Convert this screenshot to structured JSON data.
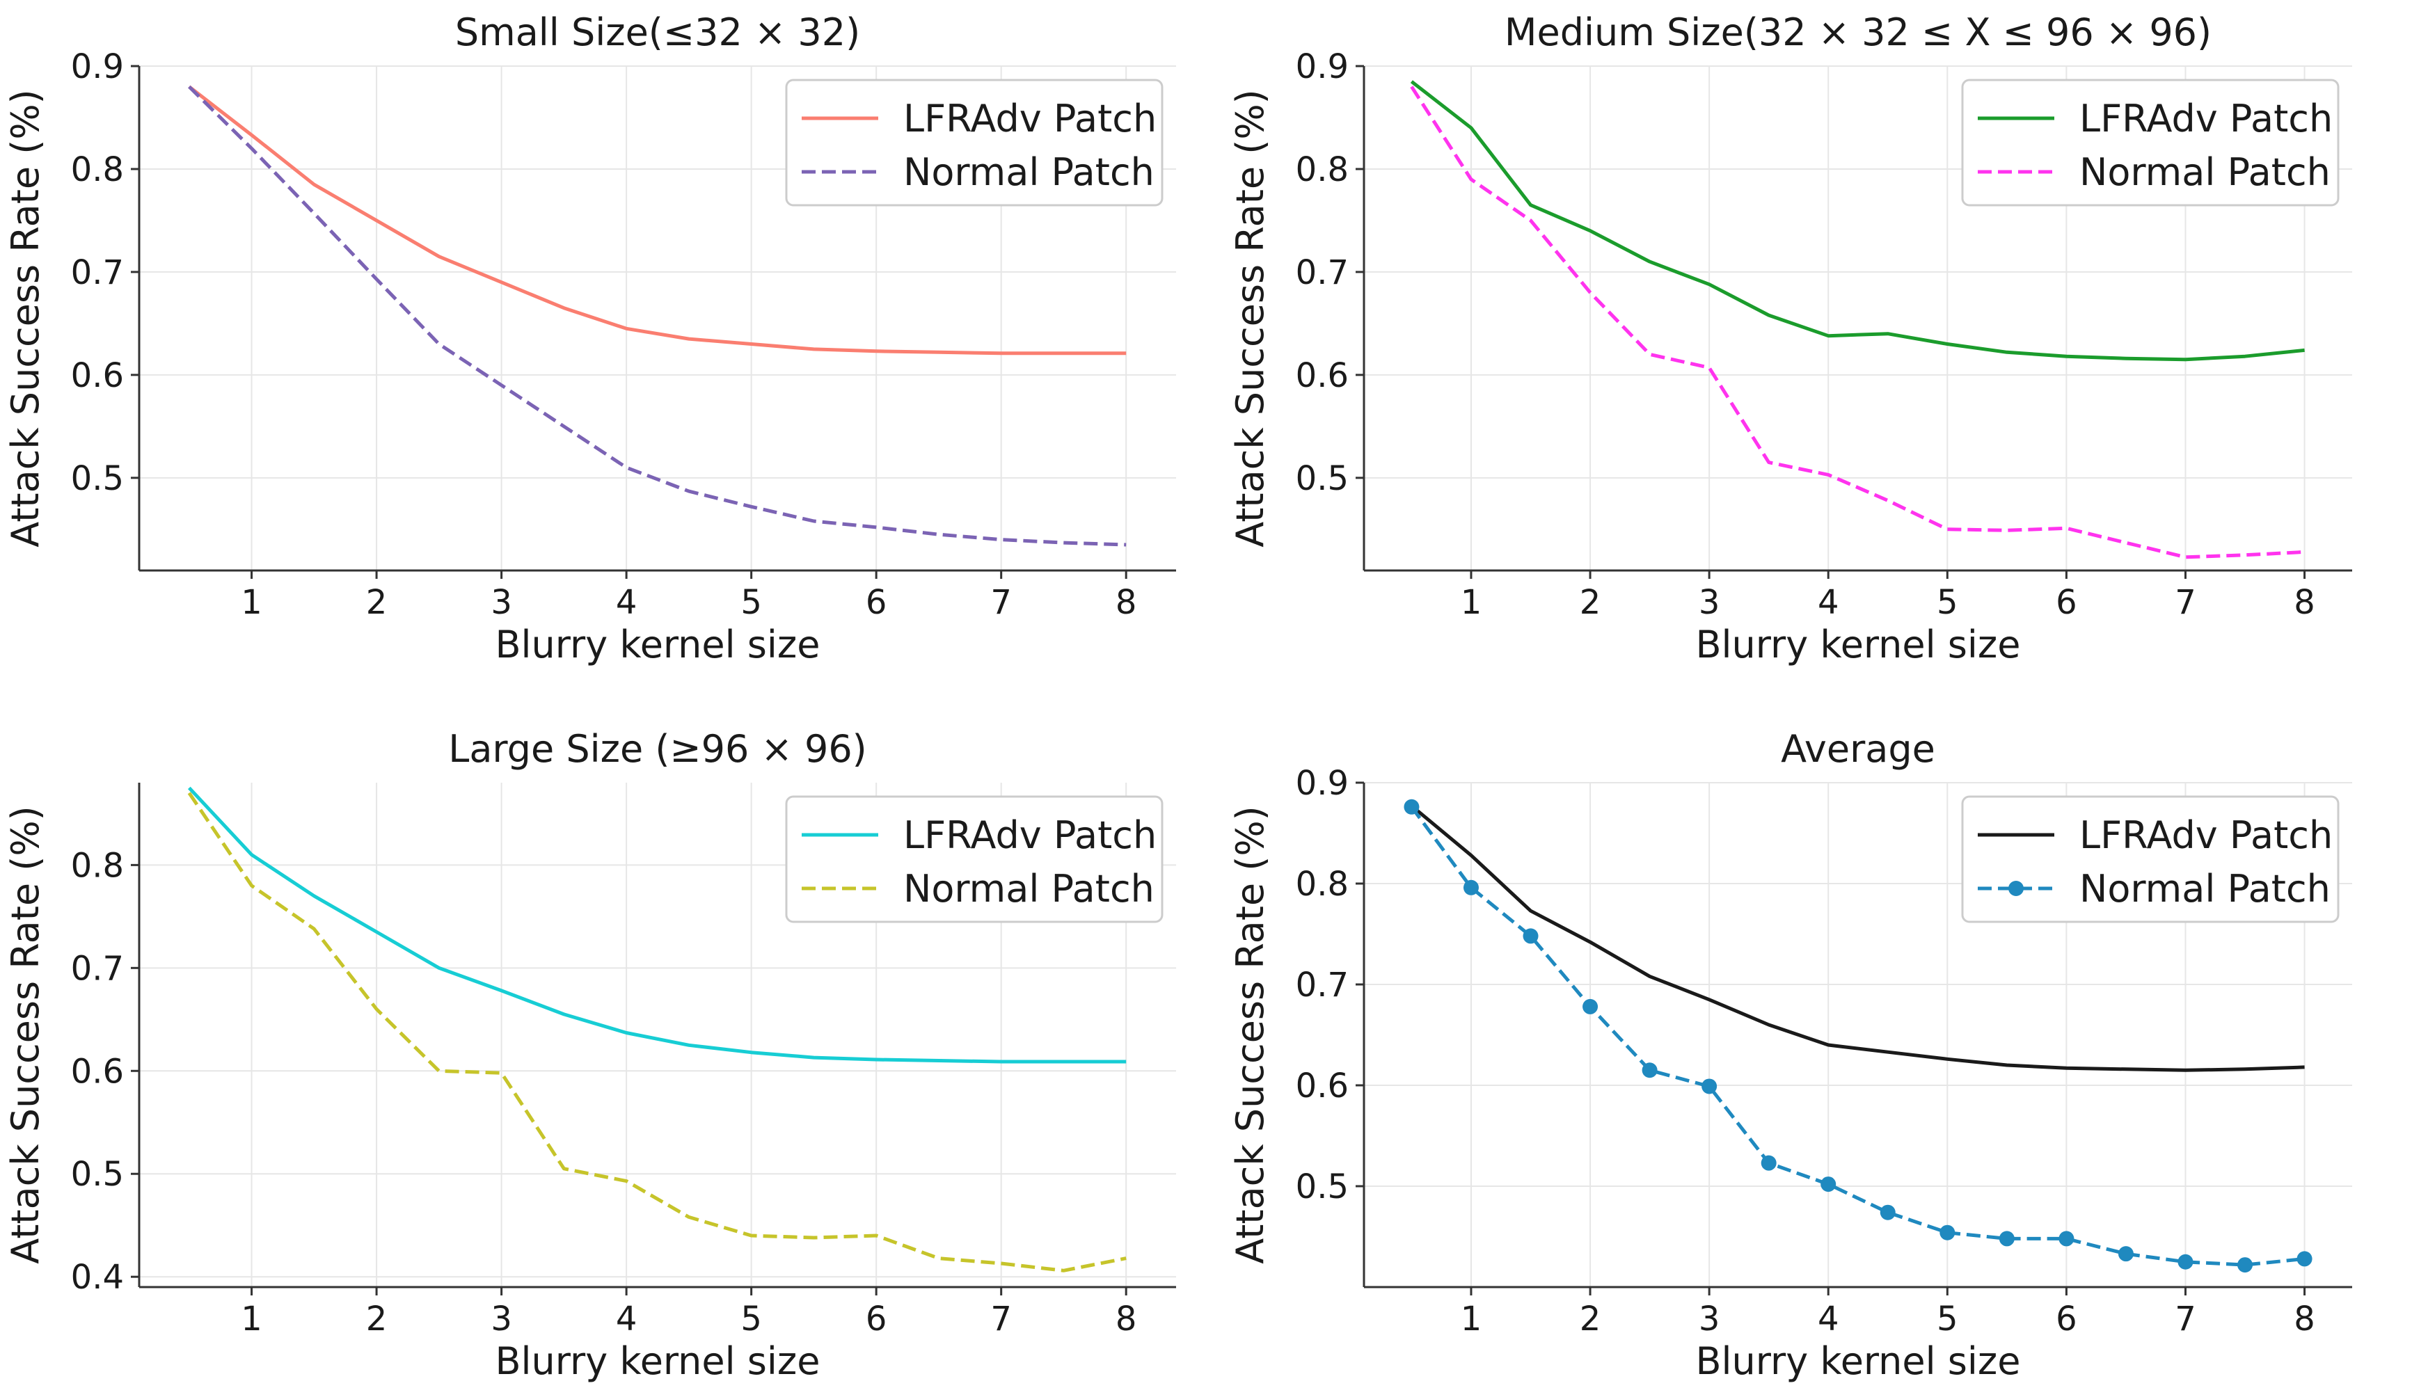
{
  "chart_data": [
    {
      "type": "line",
      "title": "Small Size(≤32 × 32)",
      "xlabel": "Blurry kernel size",
      "ylabel": "Attack Success Rate (%)",
      "xlim": [
        0.1,
        8.4
      ],
      "ylim": [
        0.41,
        0.9
      ],
      "xticks": [
        1,
        2,
        3,
        4,
        5,
        6,
        7,
        8
      ],
      "yticks": [
        0.5,
        0.6,
        0.7,
        0.8,
        0.9
      ],
      "grid": true,
      "legend": "upper right",
      "x": [
        0.5,
        1,
        1.5,
        2,
        2.5,
        3,
        3.5,
        4,
        4.5,
        5,
        5.5,
        6,
        6.5,
        7,
        7.5,
        8
      ],
      "series": [
        {
          "name": "LFRAdv Patch",
          "color": "#fa7e70",
          "dash": "solid",
          "marker": "none",
          "values": [
            0.88,
            0.833,
            0.785,
            0.75,
            0.715,
            0.69,
            0.665,
            0.645,
            0.635,
            0.63,
            0.625,
            0.623,
            0.622,
            0.621,
            0.621,
            0.621
          ]
        },
        {
          "name": "Normal Patch",
          "color": "#7b63b4",
          "dash": "dashed",
          "marker": "none",
          "values": [
            0.88,
            0.82,
            0.757,
            0.693,
            0.63,
            0.59,
            0.55,
            0.51,
            0.487,
            0.472,
            0.458,
            0.452,
            0.445,
            0.44,
            0.437,
            0.435
          ]
        }
      ]
    },
    {
      "type": "line",
      "title": "Medium Size(32 × 32 ≤ X ≤ 96 × 96)",
      "xlabel": "Blurry kernel size",
      "ylabel": "Attack Success Rate (%)",
      "xlim": [
        0.1,
        8.4
      ],
      "ylim": [
        0.41,
        0.9
      ],
      "xticks": [
        1,
        2,
        3,
        4,
        5,
        6,
        7,
        8
      ],
      "yticks": [
        0.5,
        0.6,
        0.7,
        0.8,
        0.9
      ],
      "grid": true,
      "legend": "upper right",
      "x": [
        0.5,
        1,
        1.5,
        2,
        2.5,
        3,
        3.5,
        4,
        4.5,
        5,
        5.5,
        6,
        6.5,
        7,
        7.5,
        8
      ],
      "series": [
        {
          "name": "LFRAdv Patch",
          "color": "#1b9c2c",
          "dash": "solid",
          "marker": "none",
          "values": [
            0.885,
            0.84,
            0.765,
            0.74,
            0.71,
            0.688,
            0.658,
            0.638,
            0.64,
            0.63,
            0.622,
            0.618,
            0.616,
            0.615,
            0.618,
            0.624
          ]
        },
        {
          "name": "Normal Patch",
          "color": "#ff33ee",
          "dash": "dashed",
          "marker": "none",
          "values": [
            0.88,
            0.79,
            0.75,
            0.68,
            0.62,
            0.607,
            0.515,
            0.503,
            0.478,
            0.45,
            0.449,
            0.451,
            0.437,
            0.423,
            0.425,
            0.428
          ]
        }
      ]
    },
    {
      "type": "line",
      "title": "Large Size (≥96 × 96)",
      "xlabel": "Blurry kernel size",
      "ylabel": "Attack Success Rate (%)",
      "xlim": [
        0.1,
        8.4
      ],
      "ylim": [
        0.39,
        0.88
      ],
      "xticks": [
        1,
        2,
        3,
        4,
        5,
        6,
        7,
        8
      ],
      "yticks": [
        0.4,
        0.5,
        0.6,
        0.7,
        0.8
      ],
      "grid": true,
      "legend": "upper right",
      "x": [
        0.5,
        1,
        1.5,
        2,
        2.5,
        3,
        3.5,
        4,
        4.5,
        5,
        5.5,
        6,
        6.5,
        7,
        7.5,
        8
      ],
      "series": [
        {
          "name": "LFRAdv Patch",
          "color": "#17cdd4",
          "dash": "solid",
          "marker": "none",
          "values": [
            0.875,
            0.81,
            0.77,
            0.735,
            0.7,
            0.678,
            0.655,
            0.637,
            0.625,
            0.618,
            0.613,
            0.611,
            0.61,
            0.609,
            0.609,
            0.609
          ]
        },
        {
          "name": "Normal Patch",
          "color": "#c6c42a",
          "dash": "dashed",
          "marker": "none",
          "values": [
            0.87,
            0.78,
            0.738,
            0.66,
            0.6,
            0.598,
            0.505,
            0.493,
            0.458,
            0.44,
            0.438,
            0.44,
            0.418,
            0.413,
            0.406,
            0.418
          ]
        }
      ]
    },
    {
      "type": "line",
      "title": "Average",
      "xlabel": "Blurry kernel size",
      "ylabel": "Attack Success Rate (%)",
      "xlim": [
        0.1,
        8.4
      ],
      "ylim": [
        0.4,
        0.9
      ],
      "xticks": [
        1,
        2,
        3,
        4,
        5,
        6,
        7,
        8
      ],
      "yticks": [
        0.5,
        0.6,
        0.7,
        0.8,
        0.9
      ],
      "grid": true,
      "legend": "upper right",
      "x": [
        0.5,
        1,
        1.5,
        2,
        2.5,
        3,
        3.5,
        4,
        4.5,
        5,
        5.5,
        6,
        6.5,
        7,
        7.5,
        8
      ],
      "series": [
        {
          "name": "LFRAdv Patch",
          "color": "#1a1a1a",
          "dash": "solid",
          "marker": "none",
          "values": [
            0.877,
            0.828,
            0.773,
            0.742,
            0.708,
            0.685,
            0.66,
            0.64,
            0.633,
            0.626,
            0.62,
            0.617,
            0.616,
            0.615,
            0.616,
            0.618
          ]
        },
        {
          "name": "Normal Patch",
          "color": "#1f89bf",
          "dash": "dashed",
          "marker": "circle",
          "values": [
            0.876,
            0.796,
            0.748,
            0.678,
            0.615,
            0.599,
            0.523,
            0.502,
            0.474,
            0.454,
            0.448,
            0.448,
            0.433,
            0.425,
            0.422,
            0.428
          ]
        }
      ]
    }
  ]
}
